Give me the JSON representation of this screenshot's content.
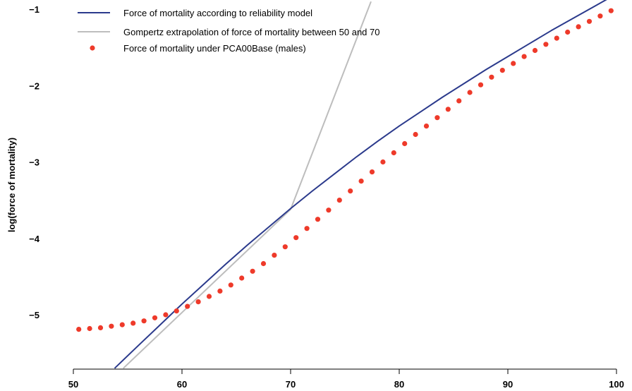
{
  "chart_data": {
    "type": "line",
    "title": "",
    "xlabel": "",
    "ylabel": "log(force of mortality)",
    "xlim": [
      50,
      100
    ],
    "ylim": [
      -5.7,
      -0.9
    ],
    "x_ticks": [
      50,
      60,
      70,
      80,
      90,
      100
    ],
    "y_ticks": [
      -1,
      -2,
      -3,
      -4,
      -5
    ],
    "x_tick_labels": [
      "50",
      "60",
      "70",
      "80",
      "90",
      "100"
    ],
    "y_tick_labels": [
      "−1",
      "−2",
      "−3",
      "−4",
      "−5"
    ],
    "grid": false,
    "legend_position": "top-left",
    "colors": {
      "reliability": "#2b3a8c",
      "gompertz": "#bdbdbd",
      "pca00": "#ee3a2a"
    },
    "series": [
      {
        "name": "Force of mortality according to reliability model",
        "style": "line",
        "x": [
          53.8,
          56,
          58,
          60,
          62,
          64,
          66,
          68,
          70,
          72,
          74,
          76,
          78,
          80,
          82,
          84,
          86,
          88,
          90,
          92,
          94,
          96,
          98,
          100
        ],
        "y": [
          -5.7,
          -5.4,
          -5.13,
          -4.86,
          -4.6,
          -4.34,
          -4.09,
          -3.85,
          -3.61,
          -3.38,
          -3.16,
          -2.94,
          -2.73,
          -2.53,
          -2.34,
          -2.15,
          -1.97,
          -1.79,
          -1.62,
          -1.45,
          -1.28,
          -1.12,
          -0.96,
          -0.8
        ]
      },
      {
        "name": "Gompertz extrapolation of force of mortality between 50 and 70",
        "style": "line",
        "x": [
          54.6,
          60,
          70,
          77.4
        ],
        "y": [
          -5.7,
          -4.97,
          -3.62,
          -0.9
        ]
      },
      {
        "name": "Force of mortality under PCA00Base (males)",
        "style": "points",
        "x": [
          50.5,
          51.5,
          52.5,
          53.5,
          54.5,
          55.5,
          56.5,
          57.5,
          58.5,
          59.5,
          60.5,
          61.5,
          62.5,
          63.5,
          64.5,
          65.5,
          66.5,
          67.5,
          68.5,
          69.5,
          70.5,
          71.5,
          72.5,
          73.5,
          74.5,
          75.5,
          76.5,
          77.5,
          78.5,
          79.5,
          80.5,
          81.5,
          82.5,
          83.5,
          84.5,
          85.5,
          86.5,
          87.5,
          88.5,
          89.5,
          90.5,
          91.5,
          92.5,
          93.5,
          94.5,
          95.5,
          96.5,
          97.5,
          98.5,
          99.5
        ],
        "y": [
          -5.19,
          -5.18,
          -5.17,
          -5.15,
          -5.13,
          -5.11,
          -5.08,
          -5.04,
          -5.0,
          -4.95,
          -4.89,
          -4.83,
          -4.76,
          -4.69,
          -4.61,
          -4.52,
          -4.43,
          -4.33,
          -4.22,
          -4.11,
          -3.99,
          -3.87,
          -3.75,
          -3.63,
          -3.5,
          -3.38,
          -3.25,
          -3.13,
          -3.0,
          -2.88,
          -2.76,
          -2.64,
          -2.53,
          -2.42,
          -2.31,
          -2.2,
          -2.09,
          -1.99,
          -1.89,
          -1.8,
          -1.71,
          -1.62,
          -1.54,
          -1.46,
          -1.38,
          -1.3,
          -1.23,
          -1.16,
          -1.09,
          -1.02
        ]
      }
    ]
  }
}
